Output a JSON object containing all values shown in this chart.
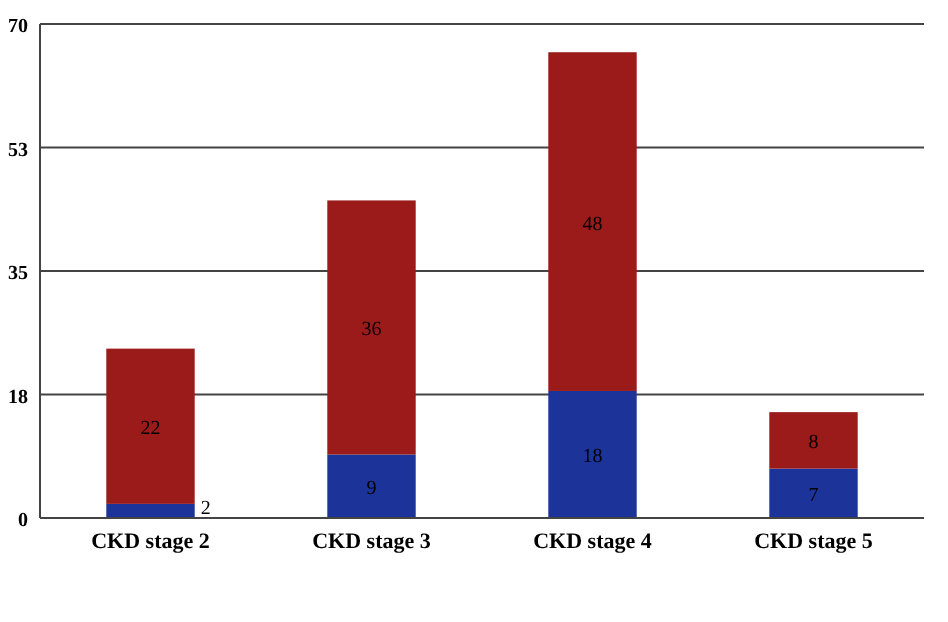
{
  "chart_data": {
    "type": "bar",
    "stacked": true,
    "categories": [
      "CKD stage 2",
      "CKD stage 3",
      "CKD stage 4",
      "CKD stage 5"
    ],
    "series": [
      {
        "color": "#1c3399",
        "values": [
          2,
          9,
          18,
          7
        ]
      },
      {
        "color": "#9b1a1a",
        "values": [
          22,
          36,
          48,
          8
        ]
      }
    ],
    "ylim": [
      0,
      70
    ],
    "yticks": [
      0,
      {
        "value": 17.5,
        "label": "18"
      },
      35,
      {
        "value": 52.5,
        "label": "53"
      },
      70
    ],
    "grid": "y",
    "data_labels": true
  }
}
